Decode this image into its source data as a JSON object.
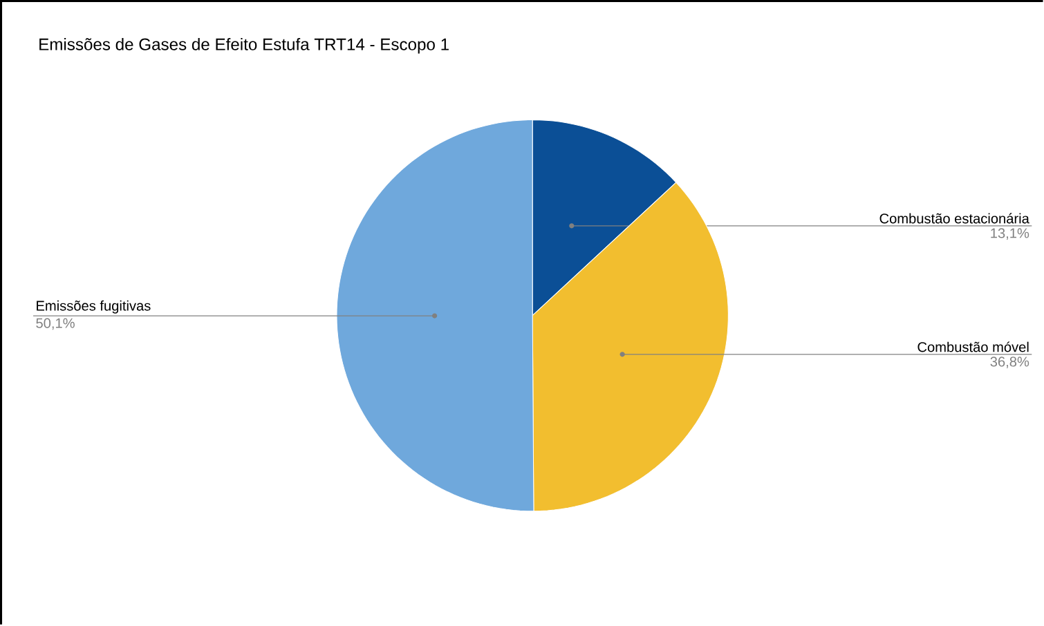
{
  "chart_data": {
    "type": "pie",
    "title": "Emissões de Gases de Efeito Estufa TRT14 - Escopo 1",
    "categories": [
      "Combustão estacionária",
      "Combustão móvel",
      "Emissões fugitivas"
    ],
    "values": [
      13.1,
      36.8,
      50.1
    ],
    "colors": [
      "#0b4f96",
      "#f2be2f",
      "#6fa8dc"
    ],
    "value_labels": [
      "13,1%",
      "36,8%",
      "50,1%"
    ]
  }
}
